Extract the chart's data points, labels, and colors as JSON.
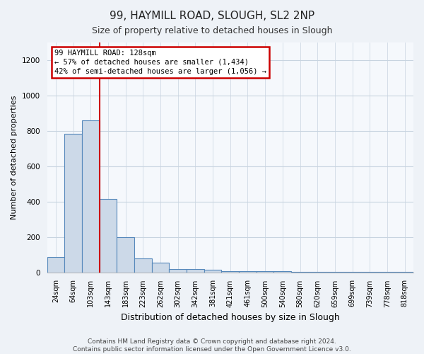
{
  "title1": "99, HAYMILL ROAD, SLOUGH, SL2 2NP",
  "title2": "Size of property relative to detached houses in Slough",
  "xlabel": "Distribution of detached houses by size in Slough",
  "ylabel": "Number of detached properties",
  "categories": [
    "24sqm",
    "64sqm",
    "103sqm",
    "143sqm",
    "183sqm",
    "223sqm",
    "262sqm",
    "302sqm",
    "342sqm",
    "381sqm",
    "421sqm",
    "461sqm",
    "500sqm",
    "540sqm",
    "580sqm",
    "620sqm",
    "659sqm",
    "699sqm",
    "739sqm",
    "778sqm",
    "818sqm"
  ],
  "bar_heights": [
    85,
    785,
    860,
    415,
    200,
    80,
    55,
    20,
    20,
    15,
    5,
    5,
    5,
    5,
    3,
    3,
    3,
    3,
    3,
    3,
    3
  ],
  "bar_color": "#ccd9e8",
  "bar_edge_color": "#5588bb",
  "property_line_x": 2.5,
  "annotation_text": "99 HAYMILL ROAD: 128sqm\n← 57% of detached houses are smaller (1,434)\n42% of semi-detached houses are larger (1,056) →",
  "annotation_box_color": "#ffffff",
  "annotation_border_color": "#cc0000",
  "ylim": [
    0,
    1300
  ],
  "yticks": [
    0,
    200,
    400,
    600,
    800,
    1000,
    1200
  ],
  "footer_text": "Contains HM Land Registry data © Crown copyright and database right 2024.\nContains public sector information licensed under the Open Government Licence v3.0.",
  "background_color": "#eef2f7",
  "plot_background_color": "#f5f8fc",
  "grid_color": "#c8d4e0",
  "title1_fontsize": 11,
  "title2_fontsize": 9,
  "ylabel_fontsize": 8,
  "xlabel_fontsize": 9,
  "tick_fontsize": 7,
  "footer_fontsize": 6.5
}
